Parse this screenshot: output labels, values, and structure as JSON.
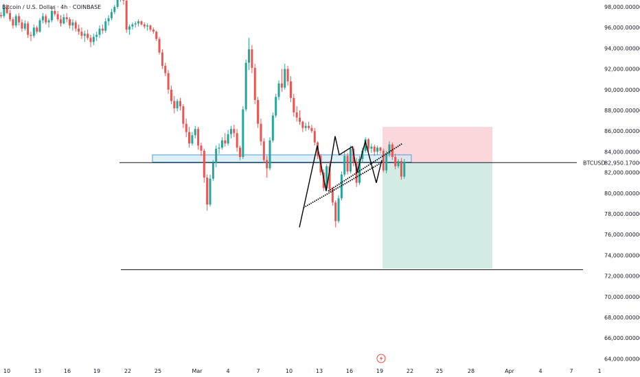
{
  "header": {
    "title": "Bitcoin / U.S. Dollar · 4h · COINBASE"
  },
  "price_axis": {
    "labels": [
      "98,000.00000",
      "96,000.00000",
      "94,000.00000",
      "92,000.00000",
      "90,000.00000",
      "88,000.00000",
      "86,000.00000",
      "84,000.00000",
      "82,000.00000",
      "80,000.00000",
      "78,000.00000",
      "76,000.00000",
      "74,000.00000",
      "72,000.00000",
      "70,000.00000",
      "68,000.00000",
      "66,000.00000",
      "64,000.00000"
    ]
  },
  "time_axis": {
    "labels": [
      "10",
      "13",
      "16",
      "19",
      "22",
      "25",
      "Mar",
      "4",
      "7",
      "10",
      "13",
      "16",
      "19",
      "22",
      "25",
      "28",
      "Apr",
      "4",
      "7",
      "1"
    ]
  },
  "horizontal_line": {
    "symbol": "BTCUSD",
    "price_text": "82,950.17000"
  },
  "colors": {
    "up": "#26a69a",
    "down": "#ef5350",
    "support_zone_fill": "#d1e9f7",
    "support_zone_stroke": "#4a9fd8",
    "stop_zone": "#f9d0d3",
    "target_zone": "#cdeae2",
    "pattern_line": "#000000"
  },
  "icons": {
    "replay": "lightning-icon"
  },
  "chart_data": {
    "type": "candlestick",
    "symbol": "BTCUSD",
    "ylim": [
      63000,
      99500
    ],
    "price_ticks": [
      98000,
      96000,
      94000,
      92000,
      90000,
      88000,
      86000,
      84000,
      82000,
      80000,
      78000,
      76000,
      74000,
      72000,
      70000,
      68000,
      66000,
      64000
    ],
    "last_price": 82950.17,
    "lower_line_price": 72600,
    "support_zone": {
      "top": 83700,
      "bottom": 83000
    },
    "position": {
      "entry": 82950,
      "stop": 86400,
      "target": 72700
    },
    "bars": [
      [
        97200,
        97500,
        96900,
        97100
      ],
      [
        97100,
        98300,
        96900,
        97900
      ],
      [
        97900,
        98200,
        97300,
        97400
      ],
      [
        97400,
        97700,
        96600,
        96800
      ],
      [
        96800,
        97000,
        95900,
        96200
      ],
      [
        96200,
        97300,
        96000,
        97100
      ],
      [
        97100,
        97400,
        96200,
        96500
      ],
      [
        96500,
        96800,
        95600,
        95900
      ],
      [
        95900,
        96700,
        95700,
        96400
      ],
      [
        96400,
        96600,
        95000,
        95300
      ],
      [
        95300,
        95600,
        94700,
        95200
      ],
      [
        95200,
        96300,
        95000,
        96000
      ],
      [
        96000,
        96200,
        95400,
        95600
      ],
      [
        95600,
        96900,
        95500,
        96700
      ],
      [
        96700,
        97400,
        96400,
        97100
      ],
      [
        97100,
        97300,
        96300,
        96500
      ],
      [
        96500,
        96900,
        96000,
        96700
      ],
      [
        96700,
        97900,
        96500,
        97600
      ],
      [
        97600,
        98000,
        97100,
        97300
      ],
      [
        97300,
        97600,
        96600,
        96800
      ],
      [
        96800,
        97200,
        96100,
        96400
      ],
      [
        96400,
        97300,
        96300,
        97000
      ],
      [
        97000,
        97400,
        96500,
        96800
      ],
      [
        96800,
        97000,
        95900,
        96200
      ],
      [
        96200,
        96800,
        95700,
        96500
      ],
      [
        96500,
        96700,
        95600,
        95900
      ],
      [
        95900,
        96300,
        95300,
        95600
      ],
      [
        95600,
        96000,
        94900,
        95200
      ],
      [
        95200,
        95700,
        94600,
        95400
      ],
      [
        95400,
        95800,
        94800,
        95000
      ],
      [
        95000,
        95300,
        94100,
        94600
      ],
      [
        94600,
        95400,
        94300,
        95100
      ],
      [
        95100,
        95600,
        94700,
        95300
      ],
      [
        95300,
        96200,
        95000,
        95900
      ],
      [
        95900,
        96300,
        95400,
        95700
      ],
      [
        95700,
        96900,
        95500,
        96600
      ],
      [
        96600,
        97200,
        96200,
        96900
      ],
      [
        96900,
        97800,
        96700,
        97500
      ],
      [
        97500,
        98200,
        97300,
        98000
      ],
      [
        98000,
        99400,
        97800,
        99100
      ],
      [
        99100,
        99300,
        98500,
        98800
      ],
      [
        98800,
        99100,
        98200,
        98600
      ],
      [
        98600,
        98800,
        95500,
        95800
      ],
      [
        95800,
        96300,
        95300,
        96100
      ],
      [
        96100,
        96500,
        95800,
        96300
      ],
      [
        96300,
        96600,
        96000,
        96400
      ],
      [
        96400,
        96800,
        96100,
        96600
      ],
      [
        96600,
        96700,
        96200,
        96300
      ],
      [
        96300,
        96500,
        95900,
        96100
      ],
      [
        96100,
        96400,
        95700,
        96200
      ],
      [
        96200,
        96300,
        95600,
        95800
      ],
      [
        95800,
        96000,
        95400,
        95600
      ],
      [
        95600,
        95700,
        94700,
        94900
      ],
      [
        94900,
        95100,
        93400,
        93600
      ],
      [
        93600,
        93900,
        92000,
        92300
      ],
      [
        92300,
        92600,
        91300,
        91600
      ],
      [
        91600,
        91900,
        89600,
        90000
      ],
      [
        90000,
        90400,
        88600,
        88900
      ],
      [
        88900,
        89400,
        87700,
        88200
      ],
      [
        88200,
        89100,
        87900,
        88900
      ],
      [
        88900,
        89200,
        88000,
        88400
      ],
      [
        88400,
        88600,
        86300,
        86700
      ],
      [
        86700,
        87200,
        85400,
        85900
      ],
      [
        85900,
        86400,
        84400,
        84800
      ],
      [
        84800,
        85900,
        84600,
        85600
      ],
      [
        85600,
        86500,
        85300,
        86200
      ],
      [
        86200,
        86400,
        84200,
        84600
      ],
      [
        84600,
        84900,
        83600,
        84100
      ],
      [
        84100,
        84300,
        81000,
        81500
      ],
      [
        81500,
        81800,
        78300,
        78900
      ],
      [
        78900,
        81800,
        78700,
        81400
      ],
      [
        81400,
        83200,
        81200,
        82900
      ],
      [
        82900,
        84600,
        82500,
        84300
      ],
      [
        84300,
        84800,
        83800,
        84400
      ],
      [
        84400,
        85400,
        84200,
        85100
      ],
      [
        85100,
        85800,
        84500,
        84800
      ],
      [
        84800,
        86100,
        84600,
        85700
      ],
      [
        85700,
        86500,
        85300,
        86200
      ],
      [
        86200,
        86600,
        85400,
        85800
      ],
      [
        85800,
        86200,
        84000,
        84400
      ],
      [
        84400,
        84600,
        83200,
        83500
      ],
      [
        83500,
        88400,
        83300,
        88100
      ],
      [
        88100,
        92900,
        87900,
        92600
      ],
      [
        92600,
        95000,
        91900,
        93900
      ],
      [
        93900,
        94300,
        91600,
        92100
      ],
      [
        92100,
        92500,
        88600,
        89000
      ],
      [
        89000,
        89300,
        86300,
        86700
      ],
      [
        86700,
        87200,
        84600,
        85000
      ],
      [
        85000,
        85300,
        82900,
        83200
      ],
      [
        83200,
        83600,
        81500,
        82400
      ],
      [
        82400,
        85400,
        82200,
        85100
      ],
      [
        85100,
        87800,
        84900,
        87500
      ],
      [
        87500,
        89600,
        87300,
        89300
      ],
      [
        89300,
        90900,
        89000,
        90600
      ],
      [
        90600,
        92000,
        89800,
        90200
      ],
      [
        90200,
        92500,
        90000,
        92000
      ],
      [
        92000,
        92300,
        90400,
        90800
      ],
      [
        90800,
        91300,
        88800,
        89200
      ],
      [
        89200,
        89600,
        87400,
        87800
      ],
      [
        87800,
        88400,
        86900,
        87300
      ],
      [
        87300,
        88000,
        86600,
        86900
      ],
      [
        86900,
        87000,
        85900,
        86300
      ],
      [
        86300,
        86800,
        86000,
        86500
      ],
      [
        86500,
        86900,
        86100,
        86300
      ],
      [
        86300,
        86600,
        85800,
        86000
      ],
      [
        86000,
        86300,
        84600,
        84900
      ],
      [
        84900,
        85000,
        83300,
        83600
      ],
      [
        83600,
        83800,
        81700,
        82000
      ],
      [
        82000,
        82300,
        80200,
        80500
      ],
      [
        80500,
        82800,
        80300,
        82600
      ],
      [
        82600,
        83100,
        80100,
        80400
      ],
      [
        80400,
        80600,
        78800,
        79100
      ],
      [
        79100,
        79300,
        76700,
        77300
      ],
      [
        77300,
        79800,
        77100,
        79500
      ],
      [
        79500,
        82100,
        79300,
        81800
      ],
      [
        81800,
        84000,
        81600,
        83600
      ],
      [
        83600,
        83900,
        81800,
        82100
      ],
      [
        82100,
        84600,
        81900,
        84300
      ],
      [
        84300,
        84500,
        82600,
        83000
      ],
      [
        83000,
        83400,
        80600,
        81000
      ],
      [
        81000,
        83600,
        80800,
        83300
      ],
      [
        83300,
        84400,
        82900,
        84100
      ],
      [
        84100,
        85400,
        83900,
        85200
      ],
      [
        85200,
        85300,
        84000,
        84300
      ],
      [
        84300,
        84800,
        83900,
        84500
      ],
      [
        84500,
        84700,
        83600,
        84000
      ],
      [
        84000,
        84600,
        83700,
        84400
      ],
      [
        84400,
        84500,
        83800,
        84100
      ],
      [
        84100,
        84300,
        82000,
        82200
      ],
      [
        82200,
        84100,
        81900,
        83800
      ],
      [
        83800,
        85000,
        83500,
        84700
      ],
      [
        84700,
        84900,
        83200,
        83500
      ],
      [
        83500,
        83800,
        82300,
        82600
      ],
      [
        82600,
        83300,
        82400,
        83100
      ],
      [
        83100,
        83400,
        81300,
        81600
      ],
      [
        81600,
        83300,
        81400,
        83000
      ]
    ]
  }
}
